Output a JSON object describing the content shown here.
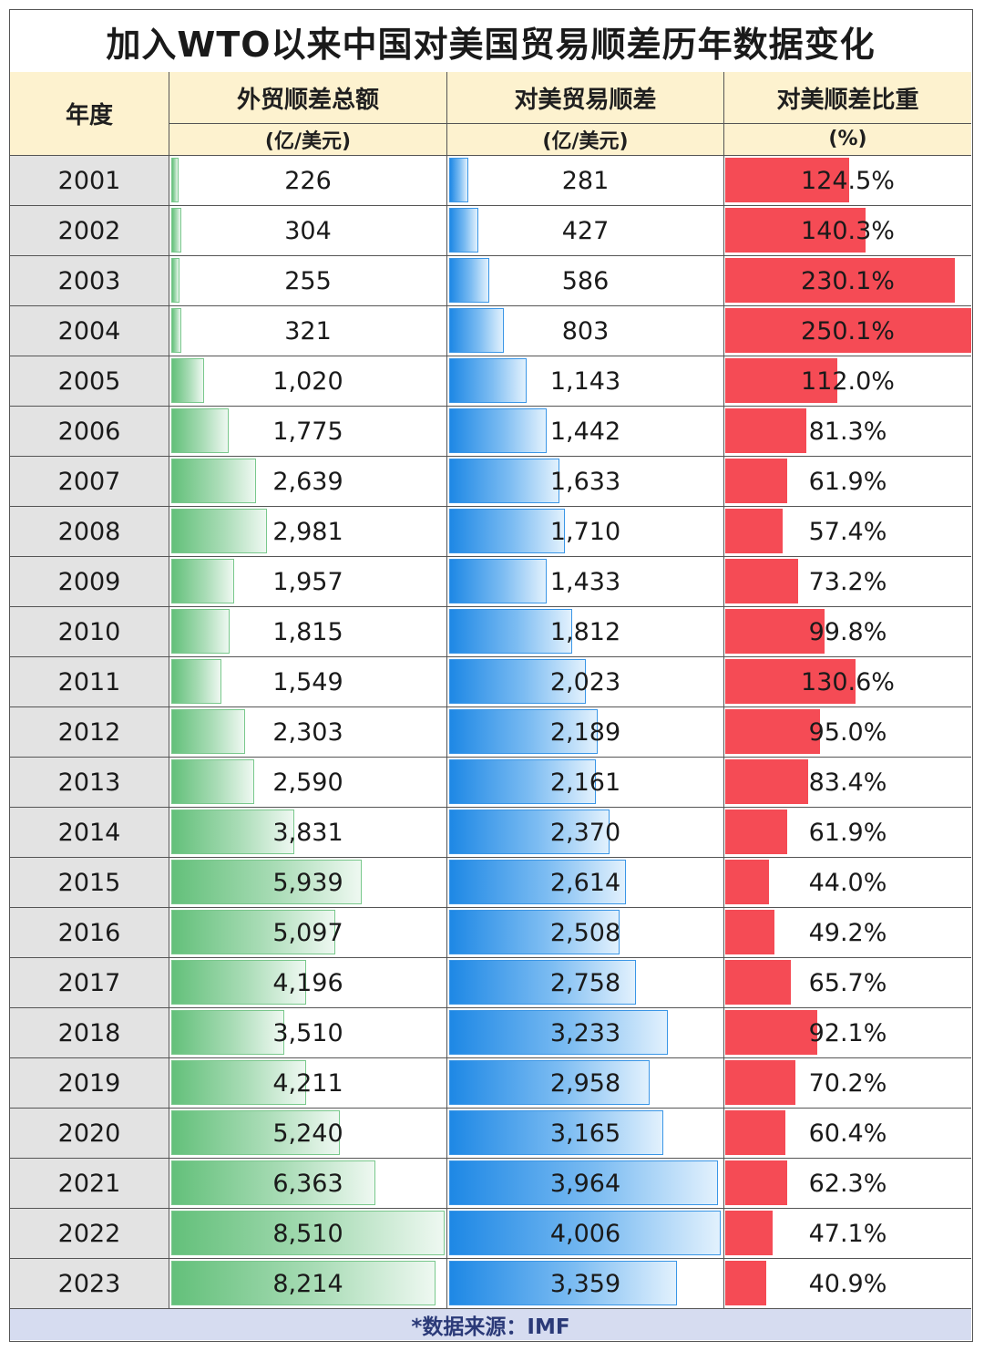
{
  "title": "加入WTO以来中国对美国贸易顺差历年数据变化",
  "header": {
    "year": "年度",
    "col1_title": "外贸顺差总额",
    "col1_unit": "(亿/美元)",
    "col2_title": "对美贸易顺差",
    "col2_unit": "(亿/美元)",
    "col3_title": "对美顺差比重",
    "col3_unit": "(%)"
  },
  "footer": "*数据来源：IMF",
  "colors": {
    "green": "#63c07a",
    "blue": "#1e88e5",
    "red": "#f54b55",
    "header_bg": "#fdf2cf",
    "year_bg": "#e3e3e3",
    "footer_bg": "#d6dcf0"
  },
  "chart_data": {
    "type": "table",
    "title": "加入WTO以来中国对美国贸易顺差历年数据变化",
    "columns": [
      "年度",
      "外贸顺差总额 (亿/美元)",
      "对美贸易顺差 (亿/美元)",
      "对美顺差比重 (%)"
    ],
    "rows": [
      {
        "year": "2001",
        "total": "226",
        "us": "281",
        "ratio": "124.5%",
        "total_v": 226,
        "us_v": 281,
        "ratio_v": 124.5
      },
      {
        "year": "2002",
        "total": "304",
        "us": "427",
        "ratio": "140.3%",
        "total_v": 304,
        "us_v": 427,
        "ratio_v": 140.3
      },
      {
        "year": "2003",
        "total": "255",
        "us": "586",
        "ratio": "230.1%",
        "total_v": 255,
        "us_v": 586,
        "ratio_v": 230.1
      },
      {
        "year": "2004",
        "total": "321",
        "us": "803",
        "ratio": "250.1%",
        "total_v": 321,
        "us_v": 803,
        "ratio_v": 250.1
      },
      {
        "year": "2005",
        "total": "1,020",
        "us": "1,143",
        "ratio": "112.0%",
        "total_v": 1020,
        "us_v": 1143,
        "ratio_v": 112.0
      },
      {
        "year": "2006",
        "total": "1,775",
        "us": "1,442",
        "ratio": "81.3%",
        "total_v": 1775,
        "us_v": 1442,
        "ratio_v": 81.3
      },
      {
        "year": "2007",
        "total": "2,639",
        "us": "1,633",
        "ratio": "61.9%",
        "total_v": 2639,
        "us_v": 1633,
        "ratio_v": 61.9
      },
      {
        "year": "2008",
        "total": "2,981",
        "us": "1,710",
        "ratio": "57.4%",
        "total_v": 2981,
        "us_v": 1710,
        "ratio_v": 57.4
      },
      {
        "year": "2009",
        "total": "1,957",
        "us": "1,433",
        "ratio": "73.2%",
        "total_v": 1957,
        "us_v": 1433,
        "ratio_v": 73.2
      },
      {
        "year": "2010",
        "total": "1,815",
        "us": "1,812",
        "ratio": "99.8%",
        "total_v": 1815,
        "us_v": 1812,
        "ratio_v": 99.8
      },
      {
        "year": "2011",
        "total": "1,549",
        "us": "2,023",
        "ratio": "130.6%",
        "total_v": 1549,
        "us_v": 2023,
        "ratio_v": 130.6
      },
      {
        "year": "2012",
        "total": "2,303",
        "us": "2,189",
        "ratio": "95.0%",
        "total_v": 2303,
        "us_v": 2189,
        "ratio_v": 95.0
      },
      {
        "year": "2013",
        "total": "2,590",
        "us": "2,161",
        "ratio": "83.4%",
        "total_v": 2590,
        "us_v": 2161,
        "ratio_v": 83.4
      },
      {
        "year": "2014",
        "total": "3,831",
        "us": "2,370",
        "ratio": "61.9%",
        "total_v": 3831,
        "us_v": 2370,
        "ratio_v": 61.9
      },
      {
        "year": "2015",
        "total": "5,939",
        "us": "2,614",
        "ratio": "44.0%",
        "total_v": 5939,
        "us_v": 2614,
        "ratio_v": 44.0
      },
      {
        "year": "2016",
        "total": "5,097",
        "us": "2,508",
        "ratio": "49.2%",
        "total_v": 5097,
        "us_v": 2508,
        "ratio_v": 49.2
      },
      {
        "year": "2017",
        "total": "4,196",
        "us": "2,758",
        "ratio": "65.7%",
        "total_v": 4196,
        "us_v": 2758,
        "ratio_v": 65.7
      },
      {
        "year": "2018",
        "total": "3,510",
        "us": "3,233",
        "ratio": "92.1%",
        "total_v": 3510,
        "us_v": 3233,
        "ratio_v": 92.1
      },
      {
        "year": "2019",
        "total": "4,211",
        "us": "2,958",
        "ratio": "70.2%",
        "total_v": 4211,
        "us_v": 2958,
        "ratio_v": 70.2
      },
      {
        "year": "2020",
        "total": "5,240",
        "us": "3,165",
        "ratio": "60.4%",
        "total_v": 5240,
        "us_v": 3165,
        "ratio_v": 60.4
      },
      {
        "year": "2021",
        "total": "6,363",
        "us": "3,964",
        "ratio": "62.3%",
        "total_v": 6363,
        "us_v": 3964,
        "ratio_v": 62.3
      },
      {
        "year": "2022",
        "total": "8,510",
        "us": "4,006",
        "ratio": "47.1%",
        "total_v": 8510,
        "us_v": 4006,
        "ratio_v": 47.1
      },
      {
        "year": "2023",
        "total": "8,214",
        "us": "3,359",
        "ratio": "40.9%",
        "total_v": 8214,
        "us_v": 3359,
        "ratio_v": 40.9
      }
    ]
  }
}
